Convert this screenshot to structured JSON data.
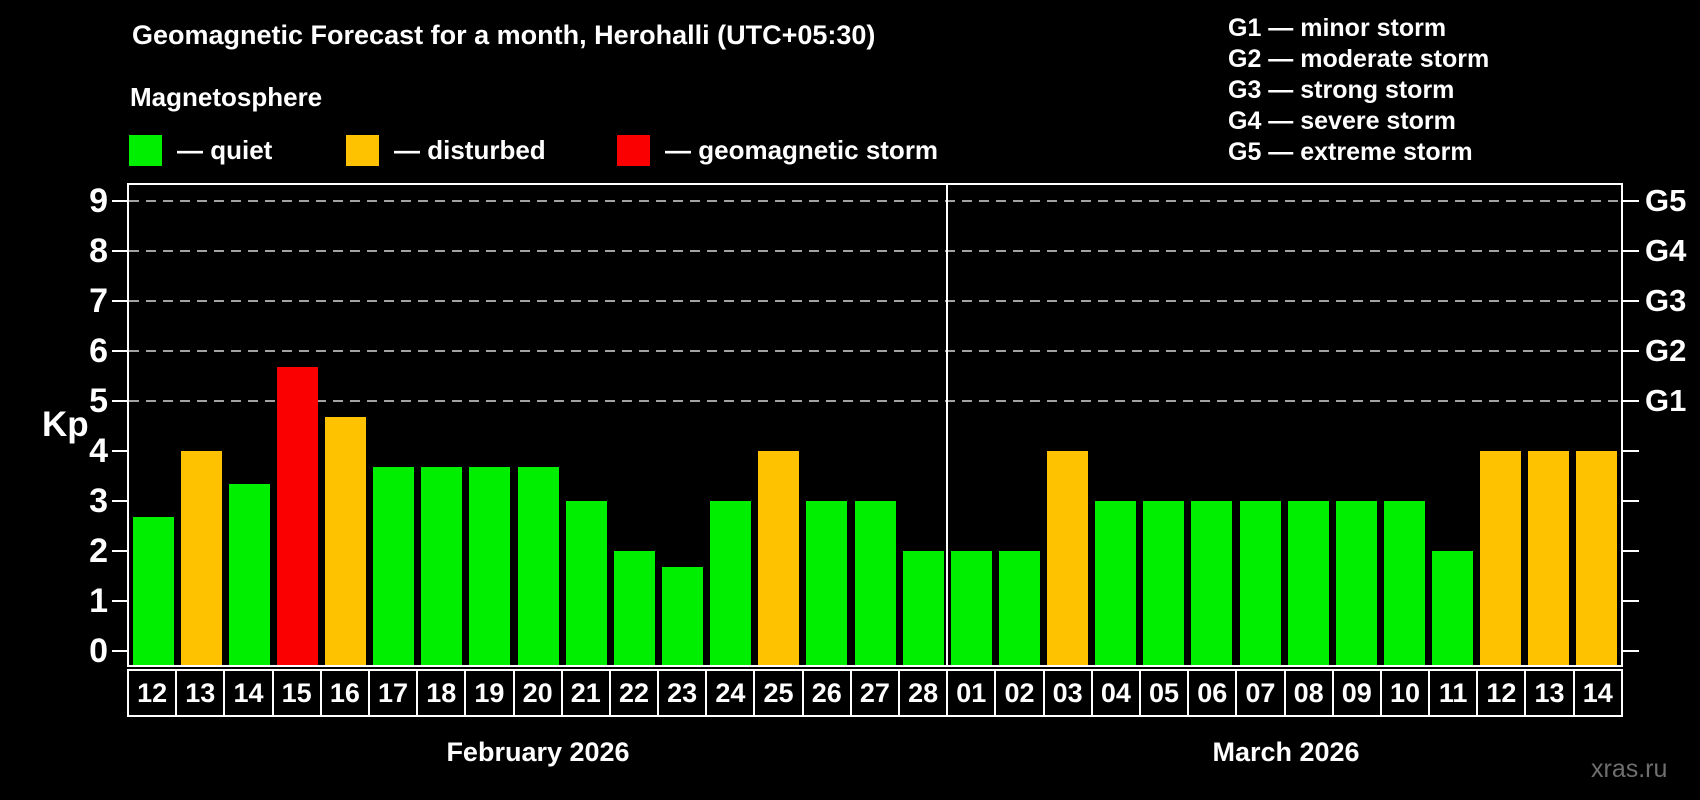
{
  "title": "Geomagnetic Forecast for a month, Herohalli (UTC+05:30)",
  "subtitle": "Magnetosphere",
  "legend": {
    "items": [
      {
        "name": "quiet",
        "label": "— quiet",
        "color": "#00ee00"
      },
      {
        "name": "disturbed",
        "label": "— disturbed",
        "color": "#ffc200"
      },
      {
        "name": "storm",
        "label": "— geomagnetic storm",
        "color": "#fa0000"
      }
    ]
  },
  "g_legend": [
    "G1 — minor storm",
    "G2 — moderate storm",
    "G3 — strong storm",
    "G4 — severe storm",
    "G5 — extreme storm"
  ],
  "watermark": "xras.ru",
  "colors": {
    "background": "#000000",
    "frame": "#ffffff",
    "grid": "#a2a2a2",
    "quiet": "#00ee00",
    "disturbed": "#ffc200",
    "storm": "#fa0000",
    "watermark": "#6f6f6f"
  },
  "chart_data": {
    "type": "bar",
    "title": "Geomagnetic Forecast for a month, Herohalli (UTC+05:30)",
    "xlabel": "",
    "ylabel": "Kp",
    "ylim": [
      0,
      9.3
    ],
    "yticks": [
      0,
      1,
      2,
      3,
      4,
      5,
      6,
      7,
      8,
      9
    ],
    "gridlines_at": [
      5,
      6,
      7,
      8,
      9
    ],
    "grid": "dashed, horizontal, only at G-storm levels",
    "legend_position": "top-left",
    "right_axis": [
      {
        "value": 5,
        "label": "G1"
      },
      {
        "value": 6,
        "label": "G2"
      },
      {
        "value": 7,
        "label": "G3"
      },
      {
        "value": 8,
        "label": "G4"
      },
      {
        "value": 9,
        "label": "G5"
      }
    ],
    "categories": [
      "12",
      "13",
      "14",
      "15",
      "16",
      "17",
      "18",
      "19",
      "20",
      "21",
      "22",
      "23",
      "24",
      "25",
      "26",
      "27",
      "28",
      "01",
      "02",
      "03",
      "04",
      "05",
      "06",
      "07",
      "08",
      "09",
      "10",
      "11",
      "12",
      "13",
      "14"
    ],
    "series": [
      {
        "name": "Kp forecast",
        "values": [
          2.67,
          4,
          3.33,
          5.67,
          4.67,
          3.67,
          3.67,
          3.67,
          3.67,
          3,
          2,
          1.67,
          3,
          4,
          3,
          3,
          2,
          2,
          2,
          4,
          3,
          3,
          3,
          3,
          3,
          3,
          3,
          2,
          4,
          4,
          4
        ],
        "statuses": [
          "quiet",
          "disturbed",
          "quiet",
          "storm",
          "disturbed",
          "quiet",
          "quiet",
          "quiet",
          "quiet",
          "quiet",
          "quiet",
          "quiet",
          "quiet",
          "disturbed",
          "quiet",
          "quiet",
          "quiet",
          "quiet",
          "quiet",
          "disturbed",
          "quiet",
          "quiet",
          "quiet",
          "quiet",
          "quiet",
          "quiet",
          "quiet",
          "quiet",
          "disturbed",
          "disturbed",
          "disturbed"
        ]
      }
    ],
    "groups": [
      {
        "label": "February 2026",
        "count": 17
      },
      {
        "label": "March 2026",
        "count": 14
      }
    ]
  }
}
